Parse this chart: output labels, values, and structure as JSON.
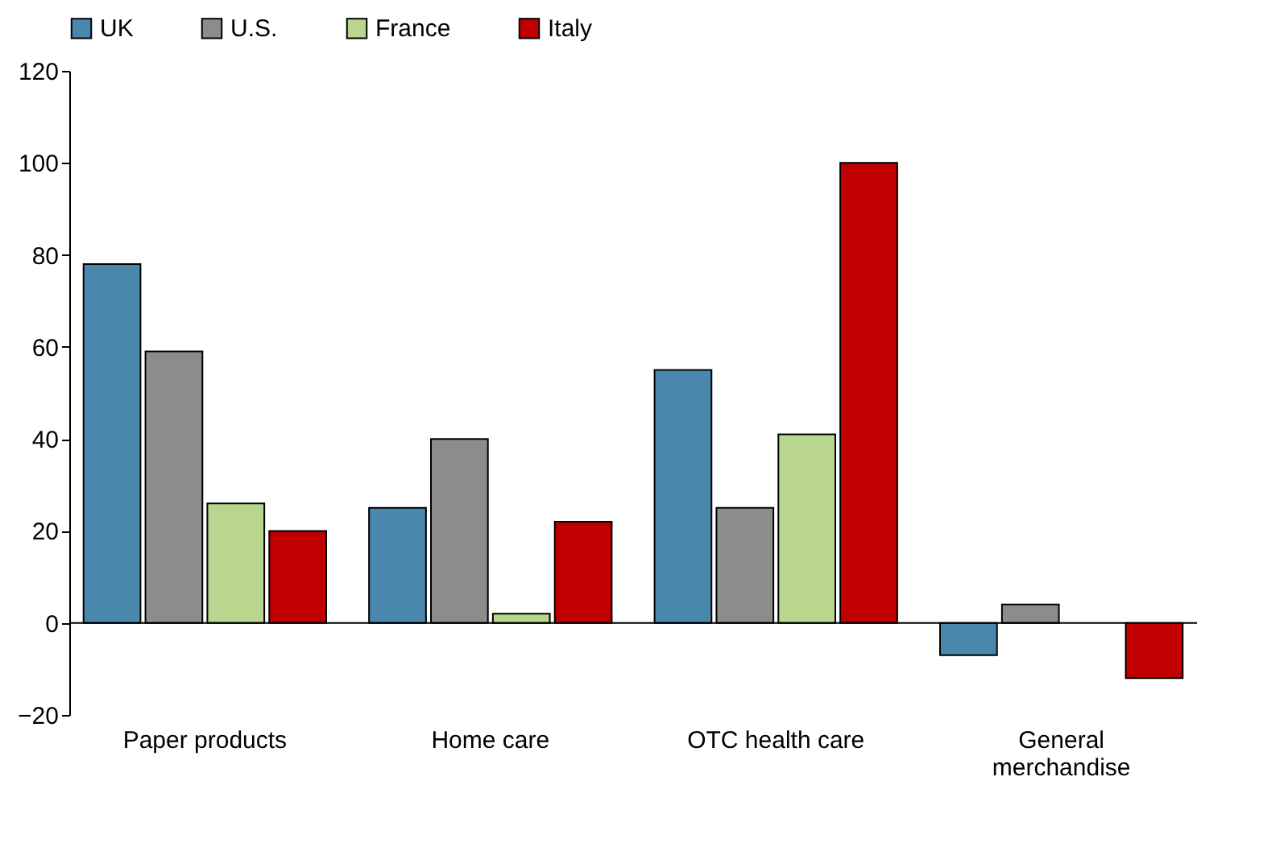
{
  "chart_data": {
    "type": "bar",
    "categories": [
      "Paper products",
      "Home care",
      "OTC health care",
      "General merchandise"
    ],
    "series": [
      {
        "name": "UK",
        "color": "#4a87ad",
        "values": [
          78,
          25,
          55,
          -7
        ]
      },
      {
        "name": "U.S.",
        "color": "#8c8c8c",
        "values": [
          59,
          40,
          25,
          4
        ]
      },
      {
        "name": "France",
        "color": "#b8d68e",
        "values": [
          26,
          2,
          41,
          null
        ]
      },
      {
        "name": "Italy",
        "color": "#c00000",
        "values": [
          20,
          22,
          100,
          -12
        ]
      }
    ],
    "ylim": [
      -20,
      120
    ],
    "yticks": [
      -20,
      0,
      20,
      40,
      60,
      80,
      100,
      120
    ],
    "grid": false,
    "legend": "top",
    "ref_lines": [
      {
        "axis": "y",
        "value": 0,
        "color": "#000000"
      }
    ]
  }
}
